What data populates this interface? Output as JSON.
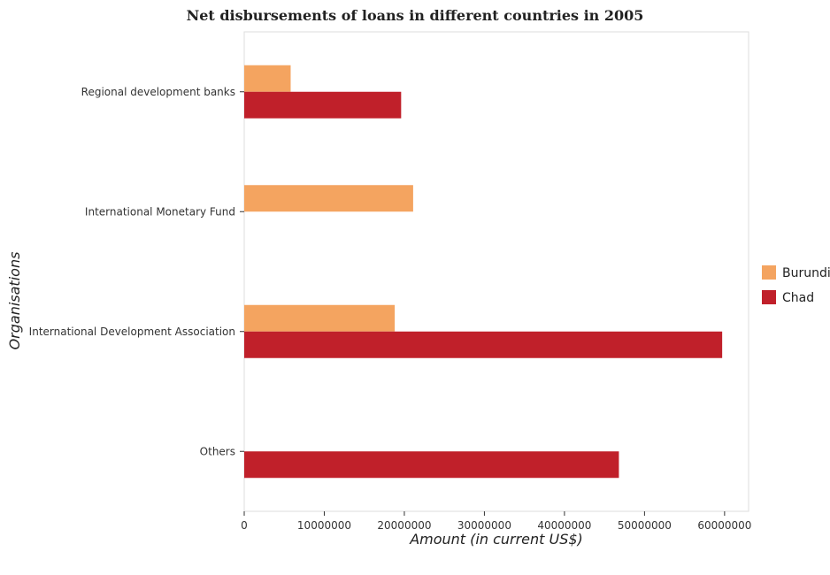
{
  "chart_data": {
    "type": "bar",
    "orientation": "horizontal",
    "title": "Net disbursements of loans in different countries in 2005",
    "xlabel": "Amount (in current US$)",
    "ylabel": "Organisations",
    "categories": [
      "Regional development banks",
      "International Monetary Fund",
      "International Development Association",
      "Others"
    ],
    "series": [
      {
        "name": "Burundi",
        "color": "#f4a460",
        "values": [
          5800000,
          21100000,
          18800000,
          0
        ]
      },
      {
        "name": "Chad",
        "color": "#c0202a",
        "values": [
          19600000,
          0,
          59700000,
          46800000
        ]
      }
    ],
    "xlim": [
      0,
      63000000
    ],
    "xticks": [
      0,
      10000000,
      20000000,
      30000000,
      40000000,
      50000000,
      60000000
    ],
    "xtick_labels": [
      "0",
      "10000000",
      "20000000",
      "30000000",
      "40000000",
      "50000000",
      "60000000"
    ],
    "legend_position": "right",
    "grid": false
  }
}
